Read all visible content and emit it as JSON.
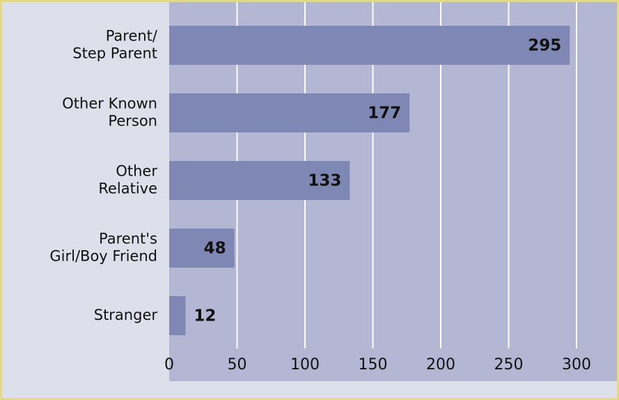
{
  "chart_data": {
    "type": "bar",
    "orientation": "horizontal",
    "categories": [
      [
        "Parent/",
        "Step Parent"
      ],
      [
        "Other Known",
        "Person"
      ],
      [
        "Other",
        "Relative"
      ],
      [
        "Parent's",
        "Girl/Boy Friend"
      ],
      [
        "Stranger"
      ]
    ],
    "values": [
      295,
      177,
      133,
      48,
      12
    ],
    "color": "#7f88b5",
    "xlim": [
      0,
      300
    ],
    "xticks": [
      0,
      50,
      100,
      150,
      200,
      250,
      300
    ],
    "grid": true
  }
}
